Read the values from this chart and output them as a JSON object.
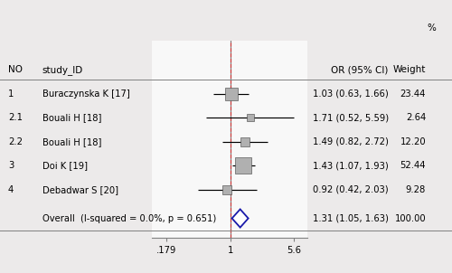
{
  "studies": [
    {
      "no": "1",
      "label": "Buraczynska K [17]",
      "or": 1.03,
      "ci_lo": 0.63,
      "ci_hi": 1.66,
      "weight": 23.44,
      "weight_str": "23.44"
    },
    {
      "no": "2.1",
      "label": "Bouali H [18]",
      "or": 1.71,
      "ci_lo": 0.52,
      "ci_hi": 5.59,
      "weight": 2.64,
      "weight_str": "2.64"
    },
    {
      "no": "2.2",
      "label": "Bouali H [18]",
      "or": 1.49,
      "ci_lo": 0.82,
      "ci_hi": 2.72,
      "weight": 12.2,
      "weight_str": "12.20"
    },
    {
      "no": "3",
      "label": "Doi K [19]",
      "or": 1.43,
      "ci_lo": 1.07,
      "ci_hi": 1.93,
      "weight": 52.44,
      "weight_str": "52.44"
    },
    {
      "no": "4",
      "label": "Debadwar S [20]",
      "or": 0.92,
      "ci_lo": 0.42,
      "ci_hi": 2.03,
      "weight": 9.28,
      "weight_str": "9.28"
    }
  ],
  "overall": {
    "label": "Overall  (I-squared = 0.0%, p = 0.651)",
    "or": 1.31,
    "ci_lo": 1.05,
    "ci_hi": 1.63,
    "weight_str": "100.00"
  },
  "xmin": 0.12,
  "xmax": 8.0,
  "xticks": [
    0.179,
    1.0,
    5.6
  ],
  "xticklabels": [
    ".179",
    "1",
    "5.6"
  ],
  "null_line": 1.0,
  "dashed_line_color": "#cc3333",
  "solid_line_color": "#808080",
  "box_color": "#b0b0b0",
  "box_edge_color": "#404040",
  "diamond_face_color": "#ffffff",
  "diamond_edge_color": "#1a1aaa",
  "header_or": "OR (95% CI)",
  "header_weight": "Weight",
  "header_no": "NO",
  "header_study": "study_ID",
  "header_pct": "%",
  "bg_color": "#eceaea",
  "plot_bg_color": "#f8f8f8",
  "fontsize": 7.2,
  "header_fontsize": 7.5
}
